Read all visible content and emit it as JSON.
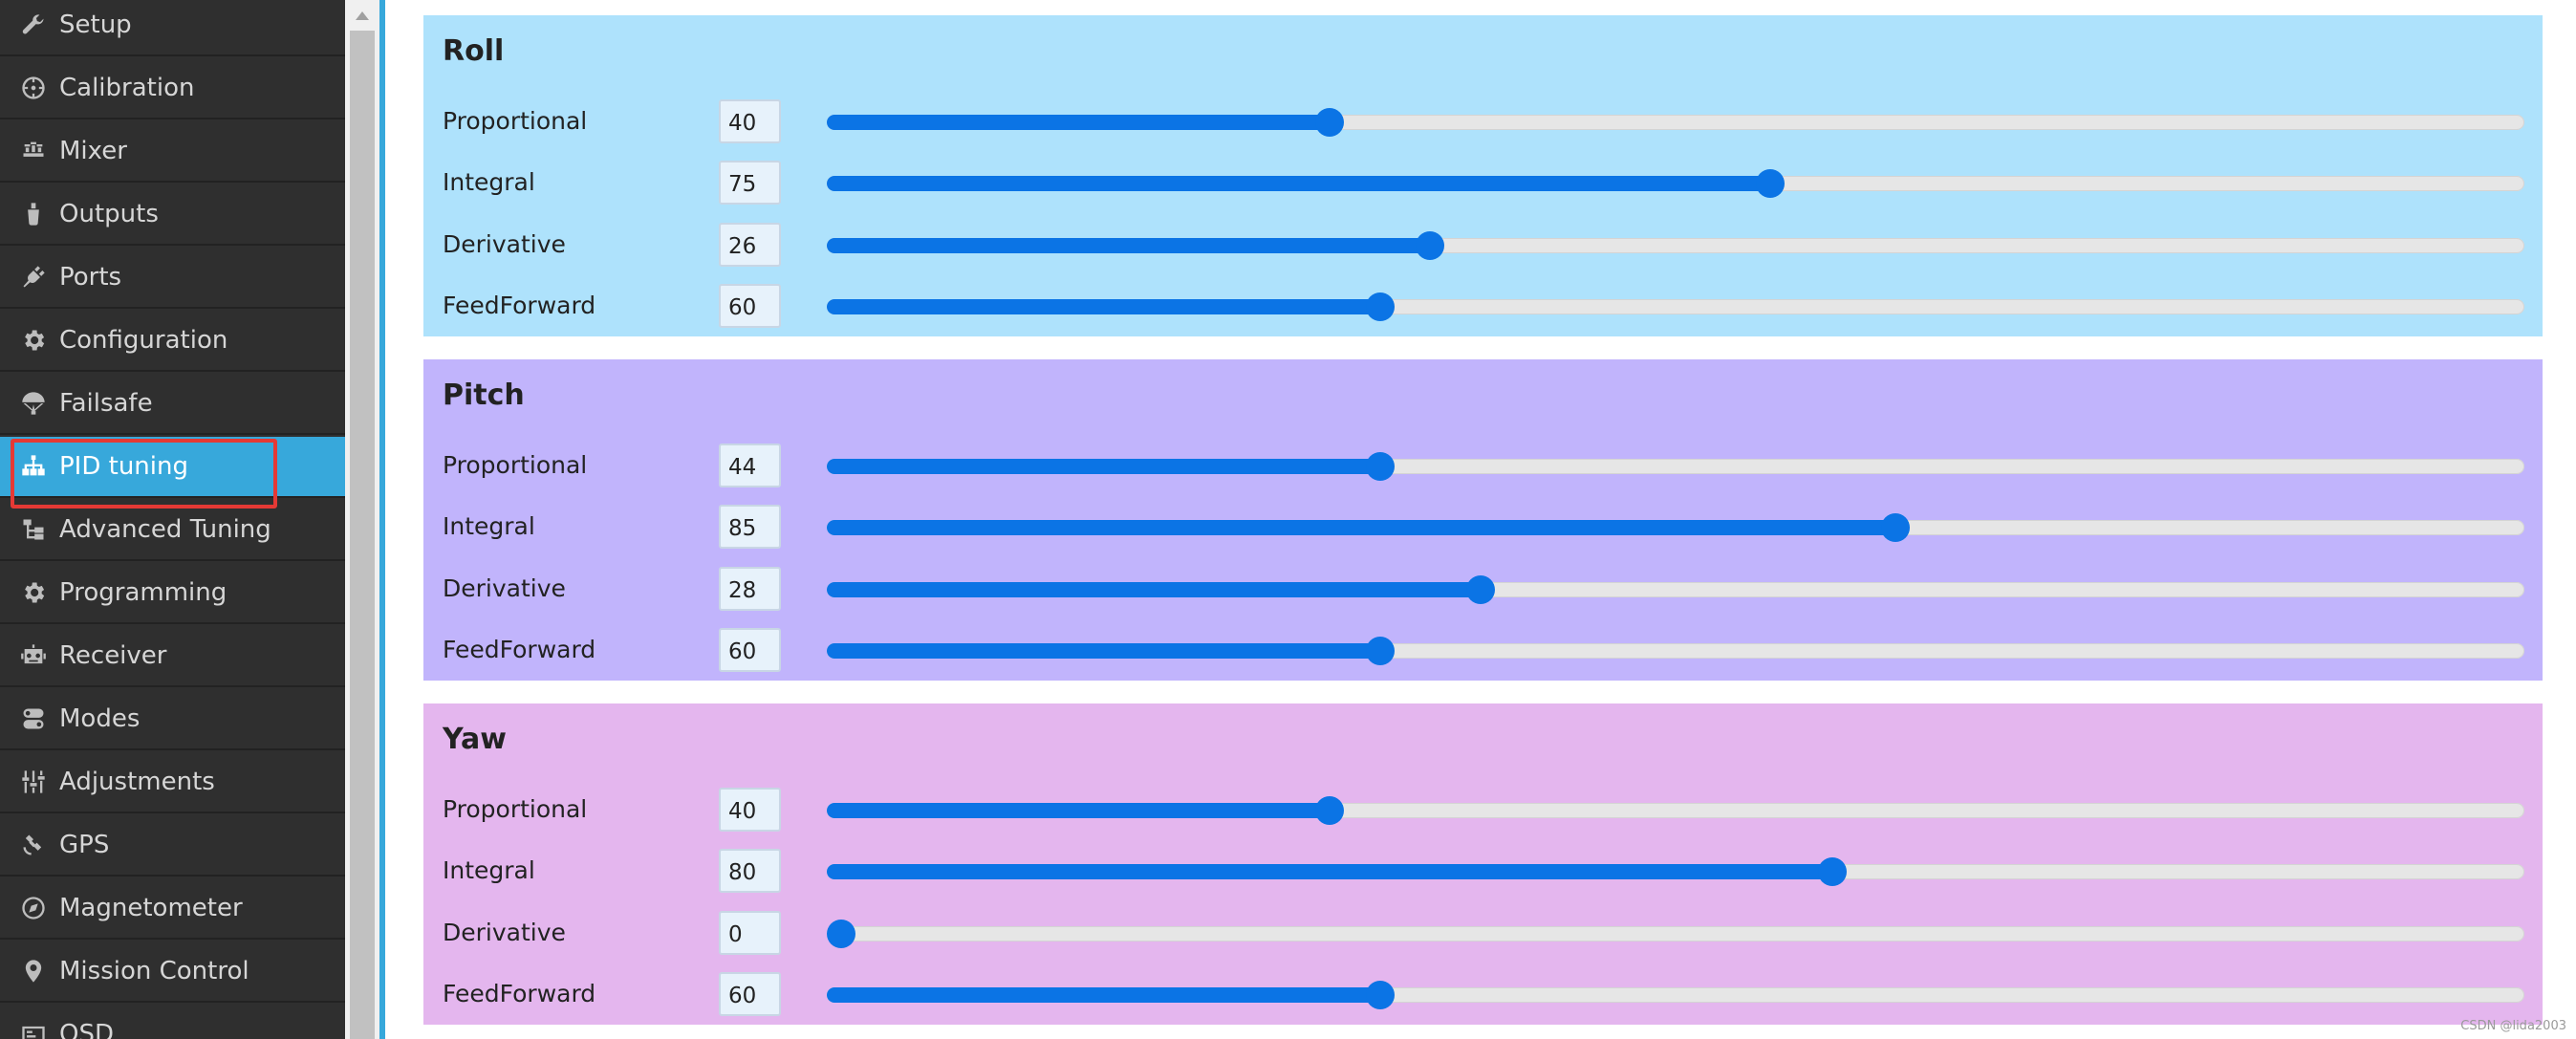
{
  "sidebar": {
    "items": [
      {
        "label": "Setup",
        "icon": "wrench-icon"
      },
      {
        "label": "Calibration",
        "icon": "crosshair-icon"
      },
      {
        "label": "Mixer",
        "icon": "mixer-icon"
      },
      {
        "label": "Outputs",
        "icon": "output-icon"
      },
      {
        "label": "Ports",
        "icon": "plug-icon"
      },
      {
        "label": "Configuration",
        "icon": "gear-icon"
      },
      {
        "label": "Failsafe",
        "icon": "parachute-icon"
      },
      {
        "label": "PID tuning",
        "icon": "sitemap-icon",
        "active": true
      },
      {
        "label": "Advanced Tuning",
        "icon": "tree-icon"
      },
      {
        "label": "Programming",
        "icon": "gear-icon"
      },
      {
        "label": "Receiver",
        "icon": "robot-icon"
      },
      {
        "label": "Modes",
        "icon": "toggle-icon"
      },
      {
        "label": "Adjustments",
        "icon": "sliders-icon"
      },
      {
        "label": "GPS",
        "icon": "satellite-icon"
      },
      {
        "label": "Magnetometer",
        "icon": "compass-icon"
      },
      {
        "label": "Mission Control",
        "icon": "map-marker-icon"
      },
      {
        "label": "OSD",
        "icon": "osd-icon"
      }
    ],
    "highlight_color": "#e53935",
    "active_color": "#37a8db"
  },
  "panels": [
    {
      "title": "Roll",
      "color": "#aee2fc",
      "slider_max": 135,
      "rows": [
        {
          "label": "Proportional",
          "value": "40",
          "level": 40
        },
        {
          "label": "Integral",
          "value": "75",
          "level": 75
        },
        {
          "label": "Derivative",
          "value": "26",
          "level": 48
        },
        {
          "label": "FeedForward",
          "value": "60",
          "level": 44
        }
      ]
    },
    {
      "title": "Pitch",
      "color": "#c1b4fc",
      "slider_max": 135,
      "rows": [
        {
          "label": "Proportional",
          "value": "44",
          "level": 44
        },
        {
          "label": "Integral",
          "value": "85",
          "level": 85
        },
        {
          "label": "Derivative",
          "value": "28",
          "level": 52
        },
        {
          "label": "FeedForward",
          "value": "60",
          "level": 44
        }
      ]
    },
    {
      "title": "Yaw",
      "color": "#e4b6ee",
      "slider_max": 135,
      "rows": [
        {
          "label": "Proportional",
          "value": "40",
          "level": 40
        },
        {
          "label": "Integral",
          "value": "80",
          "level": 80
        },
        {
          "label": "Derivative",
          "value": "0",
          "level": 0
        },
        {
          "label": "FeedForward",
          "value": "60",
          "level": 44
        }
      ]
    }
  ],
  "slider_color": "#0b74e5",
  "watermark": "CSDN @lida2003"
}
